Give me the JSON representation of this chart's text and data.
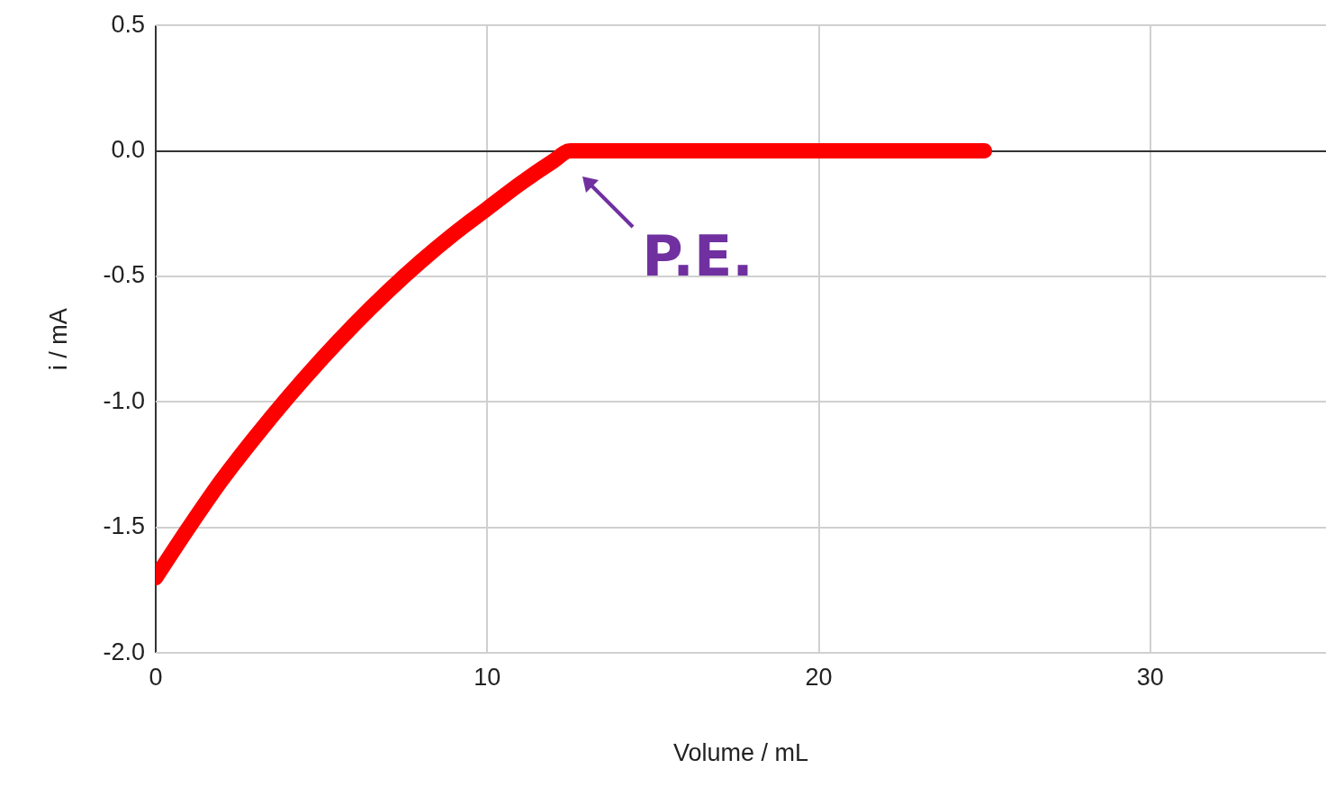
{
  "chart_data": {
    "type": "line",
    "xlabel": "Volume / mL",
    "ylabel": "i / mA",
    "x": [
      0,
      1,
      2,
      3,
      4,
      5,
      6,
      7,
      8,
      9,
      10,
      11,
      12,
      12.5,
      25
    ],
    "series": [
      {
        "color": "#ff0000",
        "values": [
          -1.7,
          -1.5,
          -1.31,
          -1.14,
          -0.98,
          -0.83,
          -0.69,
          -0.56,
          -0.44,
          -0.33,
          -0.23,
          -0.13,
          -0.04,
          0,
          0
        ]
      }
    ],
    "xlim": [
      0,
      35.3
    ],
    "xticks": [
      0,
      10,
      20,
      30
    ],
    "ylim": [
      -2,
      0.5
    ],
    "yticks": [
      {
        "value": -2,
        "label": "-2.0"
      },
      -1.5,
      {
        "value": -1,
        "label": "-1.0"
      },
      -0.5,
      {
        "value": 0,
        "label": "0.0"
      },
      0.5
    ],
    "annotations": [
      {
        "text": "P.E.",
        "x": 12.5,
        "y": 0
      }
    ],
    "grid": true,
    "legend": false,
    "marker": "none",
    "line_style": "solid"
  }
}
